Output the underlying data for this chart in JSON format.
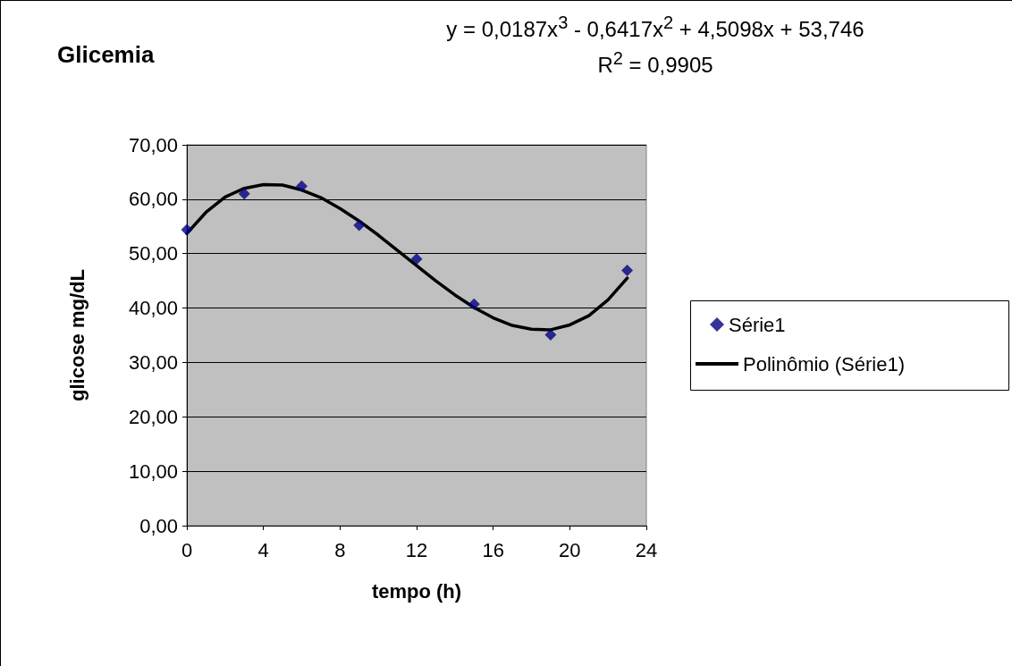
{
  "chart_data": {
    "type": "scatter",
    "title": "Glicemia",
    "xlabel": "tempo (h)",
    "ylabel": "glicose mg/dL",
    "annotations": [
      "y = 0,0187x$^{3}$ - 0,6417x$^{2}$ + 4,5098x + 53,746",
      "R$^{2}$ = 0,9905"
    ],
    "x": [
      0,
      3,
      6,
      9,
      12,
      15,
      19,
      23
    ],
    "series": [
      {
        "name": "Série1",
        "color": "#000080",
        "marker": "diamond",
        "values": [
          54.4,
          61.0,
          62.4,
          55.2,
          49.0,
          40.7,
          35.1,
          46.9
        ]
      },
      {
        "name": "Polinômio (Série1)",
        "type": "line",
        "color": "#000000",
        "marker": "none",
        "line_style": "solid",
        "x": [
          0,
          1,
          2,
          3,
          4,
          5,
          6,
          7,
          8,
          9,
          10,
          11,
          12,
          13,
          14,
          15,
          16,
          17,
          18,
          19,
          20,
          21,
          22,
          23
        ],
        "values": [
          53.7,
          57.6,
          60.4,
          62.0,
          62.7,
          62.6,
          61.7,
          60.3,
          58.3,
          56.0,
          53.4,
          50.6,
          47.8,
          45.0,
          42.4,
          40.1,
          38.2,
          36.8,
          36.1,
          36.0,
          36.9,
          38.6,
          41.5,
          45.5
        ]
      }
    ],
    "xlim": [
      0,
      24
    ],
    "xticks": [
      0,
      4,
      8,
      12,
      16,
      20,
      24
    ],
    "ylim": [
      0,
      70
    ],
    "yticks": [
      {
        "value": 0,
        "label": "0,00"
      },
      {
        "value": 10,
        "label": "10,00"
      },
      {
        "value": 20,
        "label": "20,00"
      },
      {
        "value": 30,
        "label": "30,00"
      },
      {
        "value": 40,
        "label": "40,00"
      },
      {
        "value": 50,
        "label": "50,00"
      },
      {
        "value": 60,
        "label": "60,00"
      },
      {
        "value": 70,
        "label": "70,00"
      }
    ],
    "grid": "y",
    "legend": "right"
  }
}
